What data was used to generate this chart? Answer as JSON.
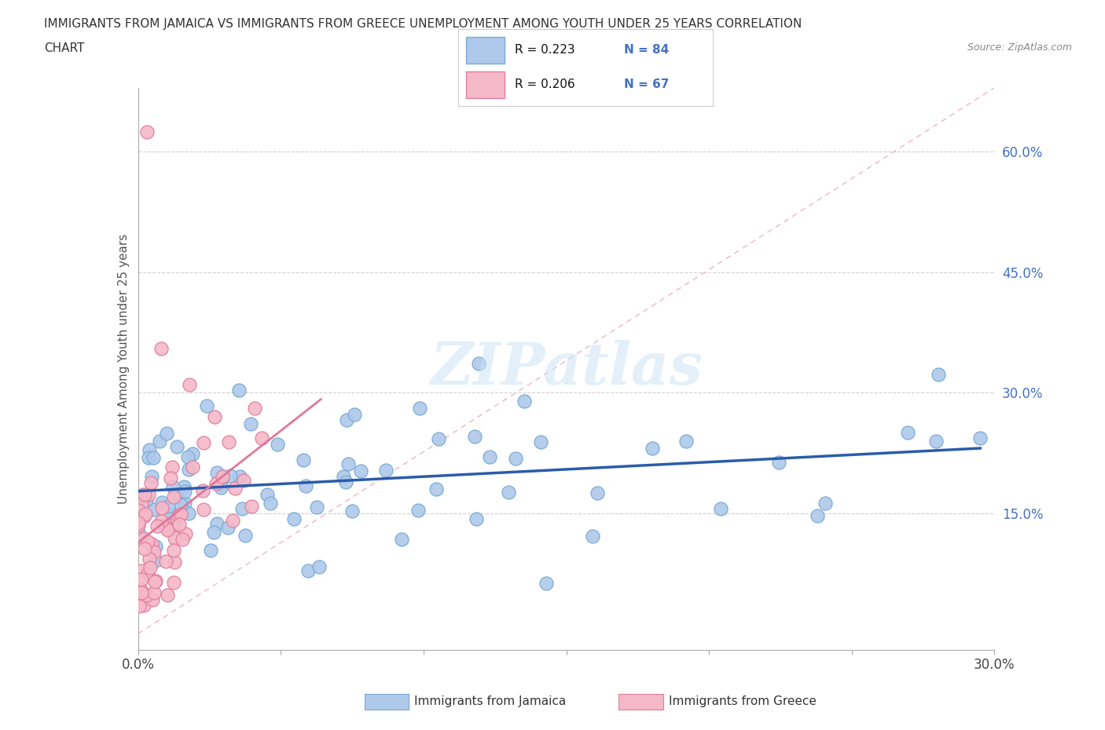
{
  "title_line1": "IMMIGRANTS FROM JAMAICA VS IMMIGRANTS FROM GREECE UNEMPLOYMENT AMONG YOUTH UNDER 25 YEARS CORRELATION",
  "title_line2": "CHART",
  "source": "Source: ZipAtlas.com",
  "ylabel": "Unemployment Among Youth under 25 years",
  "xlim": [
    0.0,
    0.3
  ],
  "ylim": [
    -0.02,
    0.68
  ],
  "ytick_positions": [
    0.15,
    0.3,
    0.45,
    0.6
  ],
  "ytick_labels": [
    "15.0%",
    "30.0%",
    "45.0%",
    "60.0%"
  ],
  "jamaica_color": "#aec9ea",
  "jamaica_edge": "#7aabd4",
  "greece_color": "#f5b8c8",
  "greece_edge": "#e080a0",
  "jamaica_R": 0.223,
  "jamaica_N": 84,
  "greece_R": 0.206,
  "greece_N": 67,
  "jamaica_line_color": "#2a5caa",
  "greece_line_color": "#e07898",
  "tick_label_color": "#4472c4",
  "watermark": "ZIPatlas",
  "legend_label1": "Immigrants from Jamaica",
  "legend_label2": "Immigrants from Greece",
  "diagonal_color": "#e8b8c8",
  "grid_color": "#d0d0d0"
}
